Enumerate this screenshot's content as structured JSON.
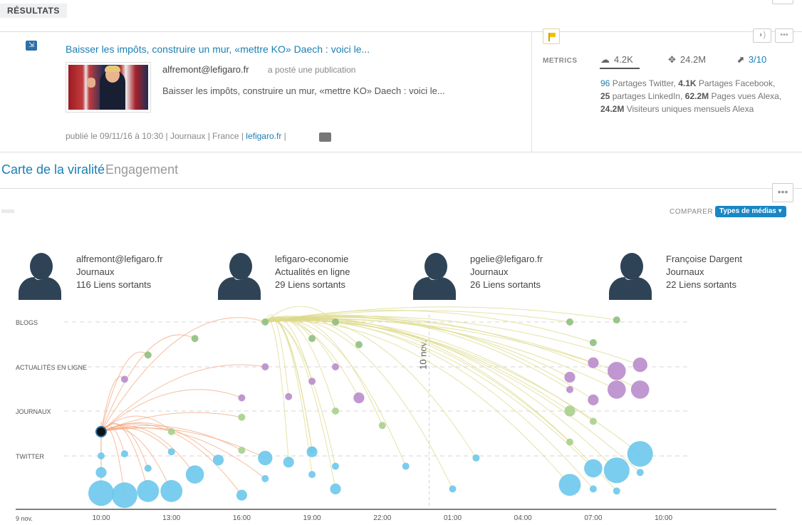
{
  "header": {
    "results_tab": "RÉSULTATS"
  },
  "publication": {
    "title": "Baisser les impôts, construire un mur, «mettre KO» Daech : voici le...",
    "author": "alfremont@lefigaro.fr",
    "action": "a posté une publication",
    "excerpt": "Baisser les impôts, construire un mur, «mettre KO» Daech : voici le...",
    "published_prefix": "publié le 09/11/16 à 10:30 | Journaux | France | ",
    "source_link": "lefigaro.fr",
    "published_suffix": " |"
  },
  "metrics": {
    "label": "METRICS",
    "shares": "4.2K",
    "reach": "24.2M",
    "rank": "3/10",
    "desc": {
      "twitter_num": "96",
      "twitter_label": " Partages Twitter, ",
      "facebook_num": "4.1K",
      "facebook_label": " Partages Facebook,",
      "linkedin_num": "25",
      "linkedin_label": " partages LinkedIn, ",
      "alexa_views_num": "62.2M",
      "alexa_views_label": " Pages vues Alexa,",
      "alexa_visitors_num": "24.2M",
      "alexa_visitors_label": " Visiteurs uniques mensuels Alexa"
    },
    "menu_dots": "•••",
    "signal_icon": "signal-icon"
  },
  "tabs": {
    "virality": "Carte de la viralité",
    "engagement": "Engagement"
  },
  "toolbar": {
    "menu_dots": "•••",
    "compare": "COMPARER",
    "media_types": "Types de médias ▾"
  },
  "influencers": [
    {
      "name": "alfremont@lefigaro.fr",
      "type": "Journaux",
      "links": "116 Liens sortants"
    },
    {
      "name": "lefigaro-economie",
      "type": "Actualités en ligne",
      "links": "29 Liens sortants"
    },
    {
      "name": "pgelie@lefigaro.fr",
      "type": "Journaux",
      "links": "26 Liens sortants"
    },
    {
      "name": "Françoise Dargent",
      "type": "Journaux",
      "links": "22 Liens sortants"
    }
  ],
  "chart_data": {
    "type": "scatter",
    "rows": [
      "BLOGS",
      "ACTUALITÉS EN LIGNE",
      "JOURNAUX",
      "TWITTER"
    ],
    "x_ticks": [
      "10:00",
      "13:00",
      "16:00",
      "19:00",
      "22:00",
      "01:00",
      "04:00",
      "07:00",
      "10:00"
    ],
    "x_start_label": "9 nov.",
    "day_marker": "10 nov.",
    "colors": {
      "BLOGS": "#8fbf7f",
      "ACTUALITÉS EN LIGNE": "#b98ccb",
      "JOURNAUX": "#a9cf8e",
      "TWITTER": "#6cc8ec",
      "edge_orange": "#f2a880",
      "edge_yellow": "#dcd98a",
      "origin": "#111111"
    },
    "origin": {
      "time": "10:00",
      "row": "JOURNAUX",
      "lane": 0.5
    },
    "points": [
      {
        "t": 11,
        "row": "ACTUALITÉS EN LIGNE",
        "lane": 0.3,
        "size": 1
      },
      {
        "t": 12,
        "row": "BLOGS",
        "lane": 0.8,
        "size": 1
      },
      {
        "t": 14,
        "row": "BLOGS",
        "lane": 0.4,
        "size": 1
      },
      {
        "t": 17,
        "row": "BLOGS",
        "lane": 0.0,
        "size": 1
      },
      {
        "t": 20,
        "row": "BLOGS",
        "lane": 0.0,
        "size": 1
      },
      {
        "t": 19,
        "row": "BLOGS",
        "lane": 0.4,
        "size": 1
      },
      {
        "t": 21,
        "row": "BLOGS",
        "lane": 0.55,
        "size": 1
      },
      {
        "t": 30,
        "row": "BLOGS",
        "lane": 0.0,
        "size": 1
      },
      {
        "t": 32,
        "row": "BLOGS",
        "lane": -0.05,
        "size": 1
      },
      {
        "t": 31,
        "row": "BLOGS",
        "lane": 0.5,
        "size": 1
      },
      {
        "t": 17,
        "row": "ACTUALITÉS EN LIGNE",
        "lane": 0.0,
        "size": 1
      },
      {
        "t": 20,
        "row": "ACTUALITÉS EN LIGNE",
        "lane": 0.0,
        "size": 1
      },
      {
        "t": 19,
        "row": "ACTUALITÉS EN LIGNE",
        "lane": 0.35,
        "size": 1
      },
      {
        "t": 16,
        "row": "ACTUALITÉS EN LIGNE",
        "lane": 0.75,
        "size": 1
      },
      {
        "t": 18,
        "row": "ACTUALITÉS EN LIGNE",
        "lane": 0.72,
        "size": 1
      },
      {
        "t": 21,
        "row": "ACTUALITÉS EN LIGNE",
        "lane": 0.75,
        "size": 2
      },
      {
        "t": 31,
        "row": "ACTUALITÉS EN LIGNE",
        "lane": -0.1,
        "size": 2
      },
      {
        "t": 30,
        "row": "ACTUALITÉS EN LIGNE",
        "lane": 0.25,
        "size": 2
      },
      {
        "t": 30,
        "row": "ACTUALITÉS EN LIGNE",
        "lane": 0.55,
        "size": 1
      },
      {
        "t": 31,
        "row": "ACTUALITÉS EN LIGNE",
        "lane": 0.8,
        "size": 2
      },
      {
        "t": 32,
        "row": "ACTUALITÉS EN LIGNE",
        "lane": 0.1,
        "size": 4
      },
      {
        "t": 32,
        "row": "ACTUALITÉS EN LIGNE",
        "lane": 0.55,
        "size": 4
      },
      {
        "t": 33,
        "row": "ACTUALITÉS EN LIGNE",
        "lane": -0.05,
        "size": 3
      },
      {
        "t": 33,
        "row": "ACTUALITÉS EN LIGNE",
        "lane": 0.55,
        "size": 4
      },
      {
        "t": 13,
        "row": "JOURNAUX",
        "lane": 0.5,
        "size": 1
      },
      {
        "t": 16,
        "row": "JOURNAUX",
        "lane": 0.15,
        "size": 1
      },
      {
        "t": 16,
        "row": "JOURNAUX",
        "lane": 0.95,
        "size": 1
      },
      {
        "t": 19,
        "row": "JOURNAUX",
        "lane": 0.95,
        "size": 1
      },
      {
        "t": 20,
        "row": "JOURNAUX",
        "lane": 0.0,
        "size": 1
      },
      {
        "t": 22,
        "row": "JOURNAUX",
        "lane": 0.35,
        "size": 1
      },
      {
        "t": 30,
        "row": "JOURNAUX",
        "lane": 0.0,
        "size": 2
      },
      {
        "t": 31,
        "row": "JOURNAUX",
        "lane": 0.25,
        "size": 1
      },
      {
        "t": 30,
        "row": "JOURNAUX",
        "lane": 0.75,
        "size": 1
      },
      {
        "t": 10,
        "row": "TWITTER",
        "lane": 0.0,
        "size": 1
      },
      {
        "t": 10,
        "row": "TWITTER",
        "lane": 0.4,
        "size": 2
      },
      {
        "t": 10,
        "row": "TWITTER",
        "lane": 0.9,
        "size": 6
      },
      {
        "t": 11,
        "row": "TWITTER",
        "lane": -0.05,
        "size": 1
      },
      {
        "t": 11,
        "row": "TWITTER",
        "lane": 0.95,
        "size": 6
      },
      {
        "t": 12,
        "row": "TWITTER",
        "lane": 0.3,
        "size": 1
      },
      {
        "t": 12,
        "row": "TWITTER",
        "lane": 0.85,
        "size": 5
      },
      {
        "t": 13,
        "row": "TWITTER",
        "lane": -0.1,
        "size": 1
      },
      {
        "t": 13,
        "row": "TWITTER",
        "lane": 0.85,
        "size": 5
      },
      {
        "t": 14,
        "row": "TWITTER",
        "lane": 0.45,
        "size": 4
      },
      {
        "t": 15,
        "row": "TWITTER",
        "lane": 0.1,
        "size": 2
      },
      {
        "t": 16,
        "row": "TWITTER",
        "lane": 0.95,
        "size": 2
      },
      {
        "t": 17,
        "row": "TWITTER",
        "lane": 0.05,
        "size": 3
      },
      {
        "t": 17,
        "row": "TWITTER",
        "lane": 0.55,
        "size": 1
      },
      {
        "t": 18,
        "row": "TWITTER",
        "lane": 0.15,
        "size": 2
      },
      {
        "t": 19,
        "row": "TWITTER",
        "lane": -0.1,
        "size": 2
      },
      {
        "t": 19,
        "row": "TWITTER",
        "lane": 0.45,
        "size": 1
      },
      {
        "t": 20,
        "row": "TWITTER",
        "lane": 0.25,
        "size": 1
      },
      {
        "t": 20,
        "row": "TWITTER",
        "lane": 0.8,
        "size": 2
      },
      {
        "t": 23,
        "row": "TWITTER",
        "lane": 0.25,
        "size": 1
      },
      {
        "t": 25,
        "row": "TWITTER",
        "lane": 0.8,
        "size": 1
      },
      {
        "t": 26,
        "row": "TWITTER",
        "lane": 0.05,
        "size": 1
      },
      {
        "t": 30,
        "row": "TWITTER",
        "lane": 0.7,
        "size": 5
      },
      {
        "t": 31,
        "row": "TWITTER",
        "lane": 0.3,
        "size": 4
      },
      {
        "t": 31,
        "row": "TWITTER",
        "lane": 0.8,
        "size": 1
      },
      {
        "t": 32,
        "row": "TWITTER",
        "lane": 0.35,
        "size": 6
      },
      {
        "t": 32,
        "row": "TWITTER",
        "lane": 0.85,
        "size": 1
      },
      {
        "t": 33,
        "row": "TWITTER",
        "lane": -0.05,
        "size": 6
      },
      {
        "t": 33,
        "row": "TWITTER",
        "lane": 0.4,
        "size": 1
      }
    ]
  }
}
